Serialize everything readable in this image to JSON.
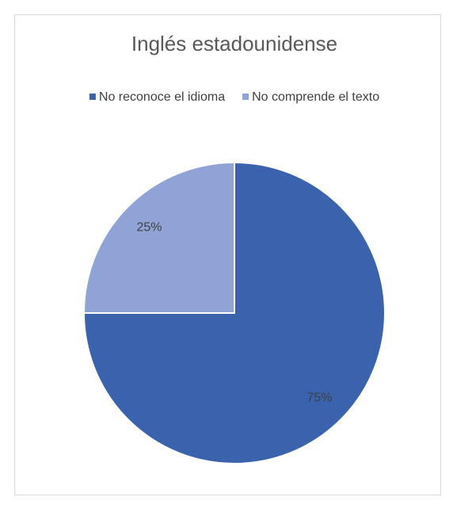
{
  "chart_data": {
    "type": "pie",
    "title": "Inglés estadounidense",
    "categories": [
      "No reconoce el idioma",
      "No comprende el texto"
    ],
    "values": [
      75,
      25
    ],
    "value_labels": [
      "75%",
      "25%"
    ],
    "colors": [
      "#3a62ad",
      "#8fa3d6"
    ],
    "legend": "top"
  }
}
